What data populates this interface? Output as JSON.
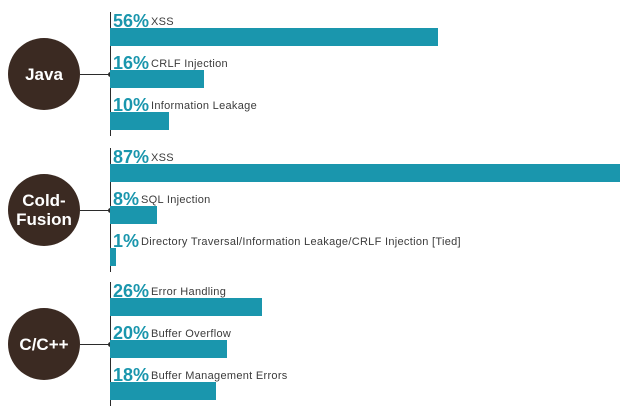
{
  "accent_color": "#1a96ad",
  "circle_color": "#3b2a22",
  "chart_data": {
    "type": "bar",
    "orientation": "horizontal",
    "value_unit": "%",
    "groups": [
      {
        "name": "Java",
        "bars": [
          {
            "label": "XSS",
            "value": 56
          },
          {
            "label": "CRLF Injection",
            "value": 16
          },
          {
            "label": "Information Leakage",
            "value": 10
          }
        ]
      },
      {
        "name": "Cold-\nFusion",
        "bars": [
          {
            "label": "XSS",
            "value": 87
          },
          {
            "label": "SQL Injection",
            "value": 8
          },
          {
            "label": "Directory Traversal/Information Leakage/CRLF Injection [Tied]",
            "value": 1
          }
        ]
      },
      {
        "name": "C/C++",
        "bars": [
          {
            "label": "Error Handling",
            "value": 26
          },
          {
            "label": "Buffer Overflow",
            "value": 20
          },
          {
            "label": "Buffer Management Errors",
            "value": 18
          }
        ]
      }
    ]
  }
}
